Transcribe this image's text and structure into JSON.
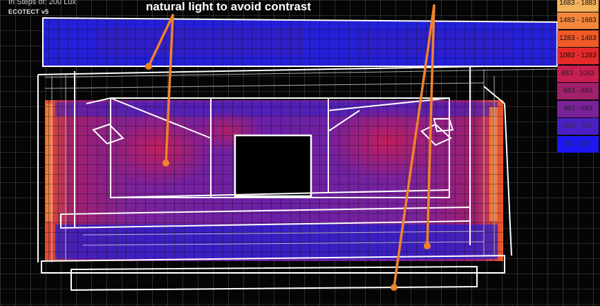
{
  "header": {
    "steps_label": "In Steps of: 200 Lux",
    "software_logo": "ECOTECT v5"
  },
  "annotations": {
    "caption": "natural light to avoid contrast"
  },
  "legend": {
    "entries": [
      {
        "label": "1683 - 1883",
        "color": "#f3b25c",
        "text_color": "#111111"
      },
      {
        "label": "1483 - 1683",
        "color": "#f4863c",
        "text_color": "#111111"
      },
      {
        "label": "1283 - 1483",
        "color": "#ef5a28",
        "text_color": "#111111"
      },
      {
        "label": "1083 - 1283",
        "color": "#e52a2a",
        "text_color": "#111111"
      },
      {
        "label": "883 - 1083",
        "color": "#c91e52",
        "text_color": "#222222"
      },
      {
        "label": "683 - 883",
        "color": "#a0206c",
        "text_color": "#222222"
      },
      {
        "label": "483 - 683",
        "color": "#7a229a",
        "text_color": "#222222"
      },
      {
        "label": "283 - 483",
        "color": "#4a20c6",
        "text_color": "#333333"
      },
      {
        "label": "83 - 283",
        "color": "#1d18f0",
        "text_color": "#333333"
      }
    ]
  },
  "colors": {
    "background": "#050505",
    "grid": "#9a9a9a",
    "wireframe": "#ffffff",
    "arrow": "#f0822a"
  }
}
